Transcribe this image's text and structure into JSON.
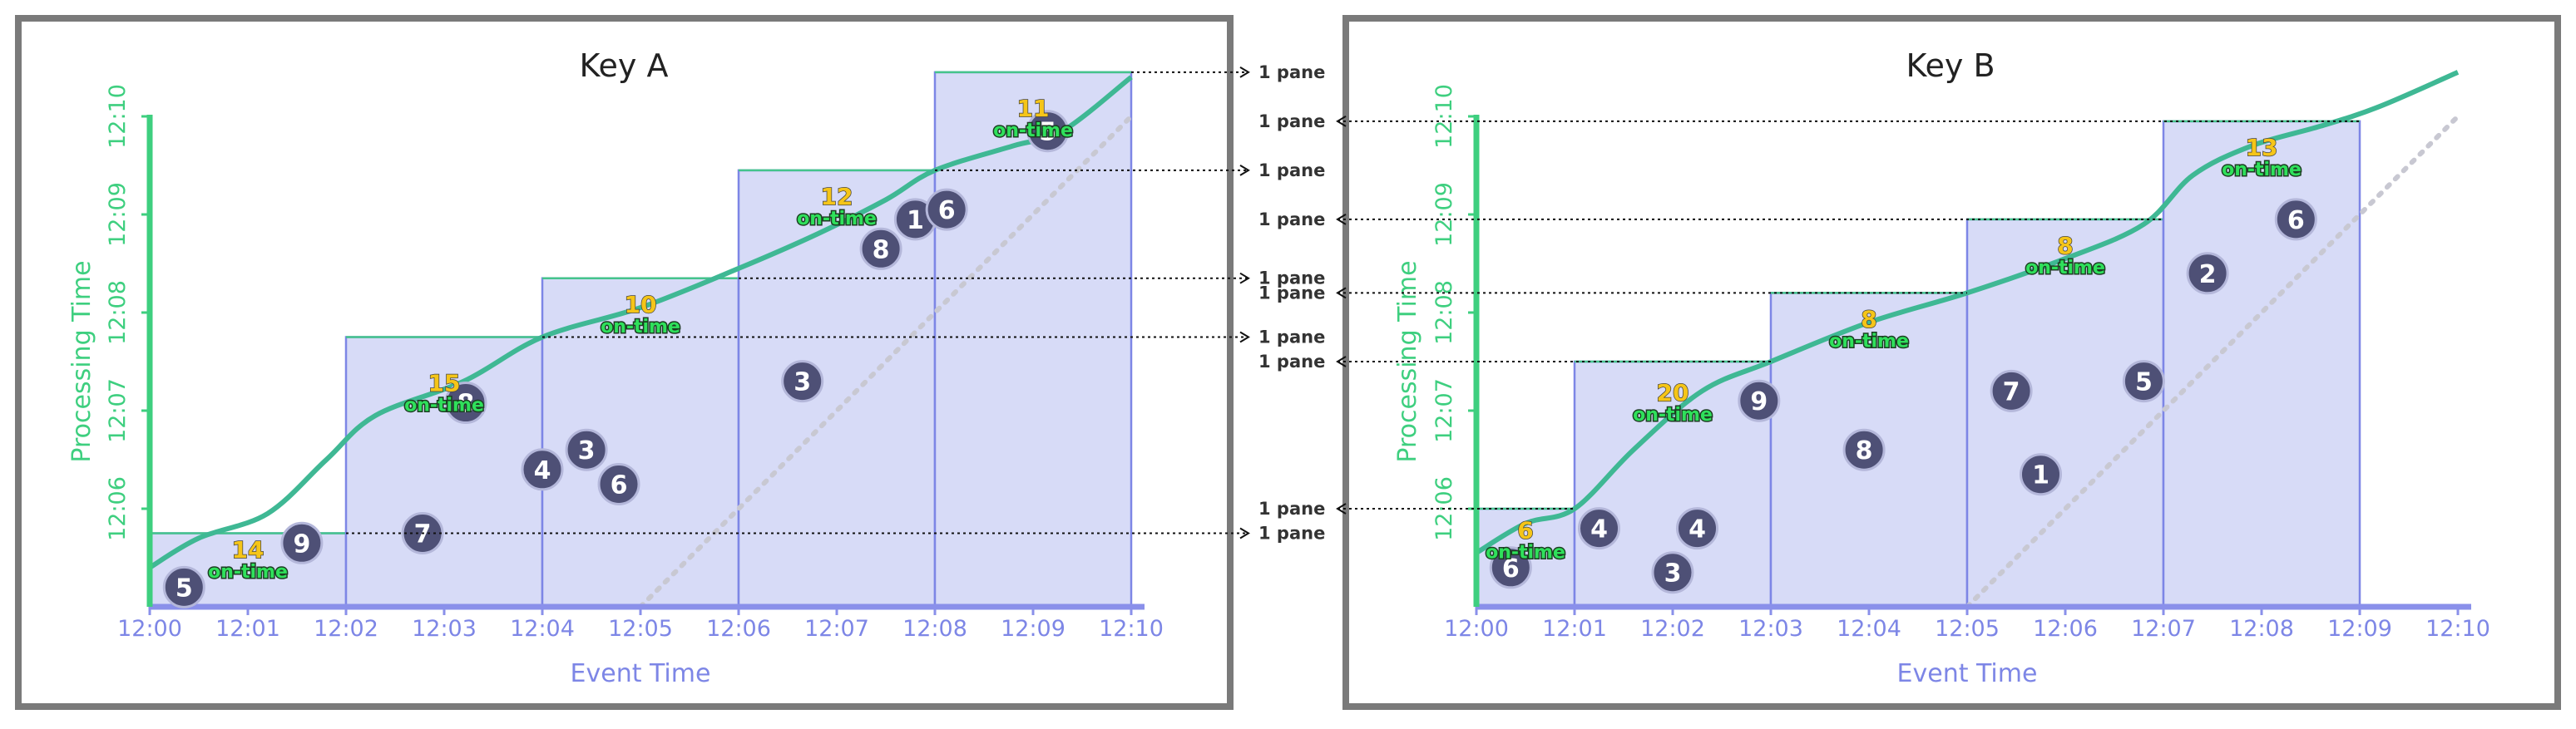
{
  "legend_center": {
    "pane_label": "1 pane"
  },
  "panels": [
    {
      "title": "Key A",
      "x_axis_title": "Event Time",
      "y_axis_title": "Processing Time",
      "x_ticks": [
        "12:00",
        "12:01",
        "12:02",
        "12:03",
        "12:04",
        "12:05",
        "12:06",
        "12:07",
        "12:08",
        "12:09",
        "12:10"
      ],
      "y_ticks": [
        "12:06",
        "12:07",
        "12:08",
        "12:09",
        "12:10"
      ],
      "windows": [
        {
          "start": 0,
          "end": 2,
          "fire": 5.75
        },
        {
          "start": 2,
          "end": 4,
          "fire": 7.75
        },
        {
          "start": 4,
          "end": 6,
          "fire": 8.35
        },
        {
          "start": 6,
          "end": 8,
          "fire": 9.45
        },
        {
          "start": 8,
          "end": 10,
          "fire": 10.45
        }
      ],
      "panes": [
        {
          "count": "14",
          "timing": "on-time",
          "ex": 1.0,
          "pt": 5.5
        },
        {
          "count": "15",
          "timing": "on-time",
          "ex": 3.0,
          "pt": 7.2
        },
        {
          "count": "10",
          "timing": "on-time",
          "ex": 5.0,
          "pt": 8.0
        },
        {
          "count": "12",
          "timing": "on-time",
          "ex": 7.0,
          "pt": 9.1
        },
        {
          "count": "11",
          "timing": "on-time",
          "ex": 9.0,
          "pt": 10.0
        }
      ],
      "points": [
        {
          "label": "5",
          "x": 0.35,
          "y": 5.2
        },
        {
          "label": "9",
          "x": 1.55,
          "y": 5.65
        },
        {
          "label": "7",
          "x": 2.78,
          "y": 5.75
        },
        {
          "label": "8",
          "x": 3.22,
          "y": 7.08
        },
        {
          "label": "4",
          "x": 4.0,
          "y": 6.4
        },
        {
          "label": "3",
          "x": 4.45,
          "y": 6.6
        },
        {
          "label": "6",
          "x": 4.78,
          "y": 6.25
        },
        {
          "label": "3",
          "x": 6.65,
          "y": 7.3
        },
        {
          "label": "8",
          "x": 7.45,
          "y": 8.65
        },
        {
          "label": "1",
          "x": 7.8,
          "y": 8.95
        },
        {
          "label": "6",
          "x": 8.12,
          "y": 9.05
        },
        {
          "label": "5",
          "x": 9.15,
          "y": 9.85
        }
      ],
      "watermark": [
        [
          0,
          5.4
        ],
        [
          0.5,
          5.7
        ],
        [
          1.2,
          5.95
        ],
        [
          1.8,
          6.5
        ],
        [
          2.3,
          6.95
        ],
        [
          3.2,
          7.3
        ],
        [
          4.0,
          7.75
        ],
        [
          5.0,
          8.05
        ],
        [
          6.0,
          8.45
        ],
        [
          6.8,
          8.8
        ],
        [
          7.5,
          9.15
        ],
        [
          8.0,
          9.45
        ],
        [
          8.8,
          9.7
        ],
        [
          9.3,
          9.85
        ],
        [
          10,
          10.4
        ]
      ],
      "ideal": [
        [
          5,
          5
        ],
        [
          10,
          10
        ]
      ],
      "y_min": 5,
      "y_max": 11
    },
    {
      "title": "Key B",
      "x_axis_title": "Event Time",
      "y_axis_title": "Processing Time",
      "x_ticks": [
        "12:00",
        "12:01",
        "12:02",
        "12:03",
        "12:04",
        "12:05",
        "12:06",
        "12:07",
        "12:08",
        "12:09",
        "12:10"
      ],
      "y_ticks": [
        "12:06",
        "12:07",
        "12:08",
        "12:09",
        "12:10"
      ],
      "windows": [
        {
          "start": 0,
          "end": 1,
          "fire": 6.0
        },
        {
          "start": 1,
          "end": 3,
          "fire": 7.5
        },
        {
          "start": 3,
          "end": 5,
          "fire": 8.2
        },
        {
          "start": 5,
          "end": 7,
          "fire": 8.95
        },
        {
          "start": 7,
          "end": 9,
          "fire": 9.95
        }
      ],
      "panes": [
        {
          "count": "6",
          "timing": "on-time",
          "ex": 0.5,
          "pt": 5.7
        },
        {
          "count": "20",
          "timing": "on-time",
          "ex": 2.0,
          "pt": 7.1
        },
        {
          "count": "8",
          "timing": "on-time",
          "ex": 4.0,
          "pt": 7.85
        },
        {
          "count": "8",
          "timing": "on-time",
          "ex": 6.0,
          "pt": 8.6
        },
        {
          "count": "13",
          "timing": "on-time",
          "ex": 8.0,
          "pt": 9.6
        }
      ],
      "points": [
        {
          "label": "6",
          "x": 0.35,
          "y": 5.4
        },
        {
          "label": "4",
          "x": 1.25,
          "y": 5.8
        },
        {
          "label": "3",
          "x": 2.0,
          "y": 5.35
        },
        {
          "label": "4",
          "x": 2.25,
          "y": 5.8
        },
        {
          "label": "9",
          "x": 2.88,
          "y": 7.1
        },
        {
          "label": "8",
          "x": 3.95,
          "y": 6.6
        },
        {
          "label": "7",
          "x": 5.45,
          "y": 7.2
        },
        {
          "label": "1",
          "x": 5.75,
          "y": 6.35
        },
        {
          "label": "5",
          "x": 6.8,
          "y": 7.3
        },
        {
          "label": "2",
          "x": 7.45,
          "y": 8.4
        },
        {
          "label": "6",
          "x": 8.35,
          "y": 8.95
        }
      ],
      "watermark": [
        [
          0,
          5.55
        ],
        [
          0.5,
          5.85
        ],
        [
          1.0,
          6.0
        ],
        [
          1.6,
          6.6
        ],
        [
          2.3,
          7.2
        ],
        [
          3.0,
          7.5
        ],
        [
          4.0,
          7.9
        ],
        [
          5.0,
          8.2
        ],
        [
          6.0,
          8.55
        ],
        [
          6.8,
          8.9
        ],
        [
          7.3,
          9.4
        ],
        [
          7.9,
          9.7
        ],
        [
          8.6,
          9.9
        ],
        [
          9.2,
          10.1
        ],
        [
          10,
          10.45
        ]
      ],
      "ideal": [
        [
          5,
          5
        ],
        [
          10,
          10
        ]
      ],
      "y_min": 5,
      "y_max": 11
    }
  ]
}
